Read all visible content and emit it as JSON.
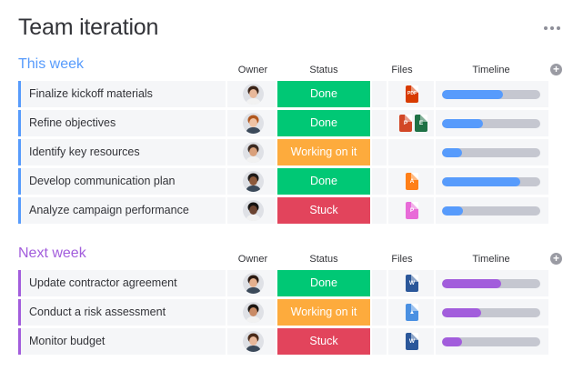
{
  "page": {
    "title": "Team iteration"
  },
  "colors": {
    "done": "#00c875",
    "working": "#fdab3d",
    "stuck": "#e2445c",
    "this_week": "#579bfc",
    "next_week": "#a25ddc",
    "timeline_track": "#c5c7d0"
  },
  "groups": [
    {
      "title": "This week",
      "color": "#579bfc",
      "headers": {
        "owner": "Owner",
        "status": "Status",
        "files": "Files",
        "timeline": "Timeline"
      },
      "rows": [
        {
          "name": "Finalize kickoff materials",
          "owner": "owner-avatar-1",
          "status": "Done",
          "status_type": "done",
          "files": [
            {
              "type": "pdf",
              "label": "PDF",
              "color": "#d83b01"
            }
          ],
          "timeline_progress": 0.62
        },
        {
          "name": "Refine objectives",
          "owner": "owner-avatar-2",
          "status": "Done",
          "status_type": "done",
          "files": [
            {
              "type": "ppt",
              "label": "P",
              "color": "#d24726"
            },
            {
              "type": "xls",
              "label": "E",
              "color": "#1e7145"
            }
          ],
          "timeline_progress": 0.42
        },
        {
          "name": "Identify key resources",
          "owner": "owner-avatar-3",
          "status": "Working on it",
          "status_type": "working",
          "files": [],
          "timeline_progress": 0.2
        },
        {
          "name": "Develop communication plan",
          "owner": "owner-avatar-4",
          "status": "Done",
          "status_type": "done",
          "files": [
            {
              "type": "ai",
              "label": "A",
              "color": "#ff7f18"
            }
          ],
          "timeline_progress": 0.8
        },
        {
          "name": "Analyze campaign performance",
          "owner": "owner-avatar-5",
          "status": "Stuck",
          "status_type": "stuck",
          "files": [
            {
              "type": "ppt",
              "label": "P",
              "color": "#e86bd8"
            }
          ],
          "timeline_progress": 0.21
        }
      ]
    },
    {
      "title": "Next week",
      "color": "#a25ddc",
      "headers": {
        "owner": "Owner",
        "status": "Status",
        "files": "Files",
        "timeline": "Timeline"
      },
      "rows": [
        {
          "name": "Update contractor agreement",
          "owner": "owner-avatar-6",
          "status": "Done",
          "status_type": "done",
          "files": [
            {
              "type": "doc",
              "label": "W",
              "color": "#2b579a"
            }
          ],
          "timeline_progress": 0.6
        },
        {
          "name": "Conduct a risk assessment",
          "owner": "owner-avatar-7",
          "status": "Working on it",
          "status_type": "working",
          "files": [
            {
              "type": "image",
              "label": "▲",
              "color": "#4a90e2"
            }
          ],
          "timeline_progress": 0.4
        },
        {
          "name": "Monitor budget",
          "owner": "owner-avatar-8",
          "status": "Stuck",
          "status_type": "stuck",
          "files": [
            {
              "type": "doc",
              "label": "W",
              "color": "#2b579a"
            }
          ],
          "timeline_progress": 0.2
        }
      ]
    }
  ]
}
